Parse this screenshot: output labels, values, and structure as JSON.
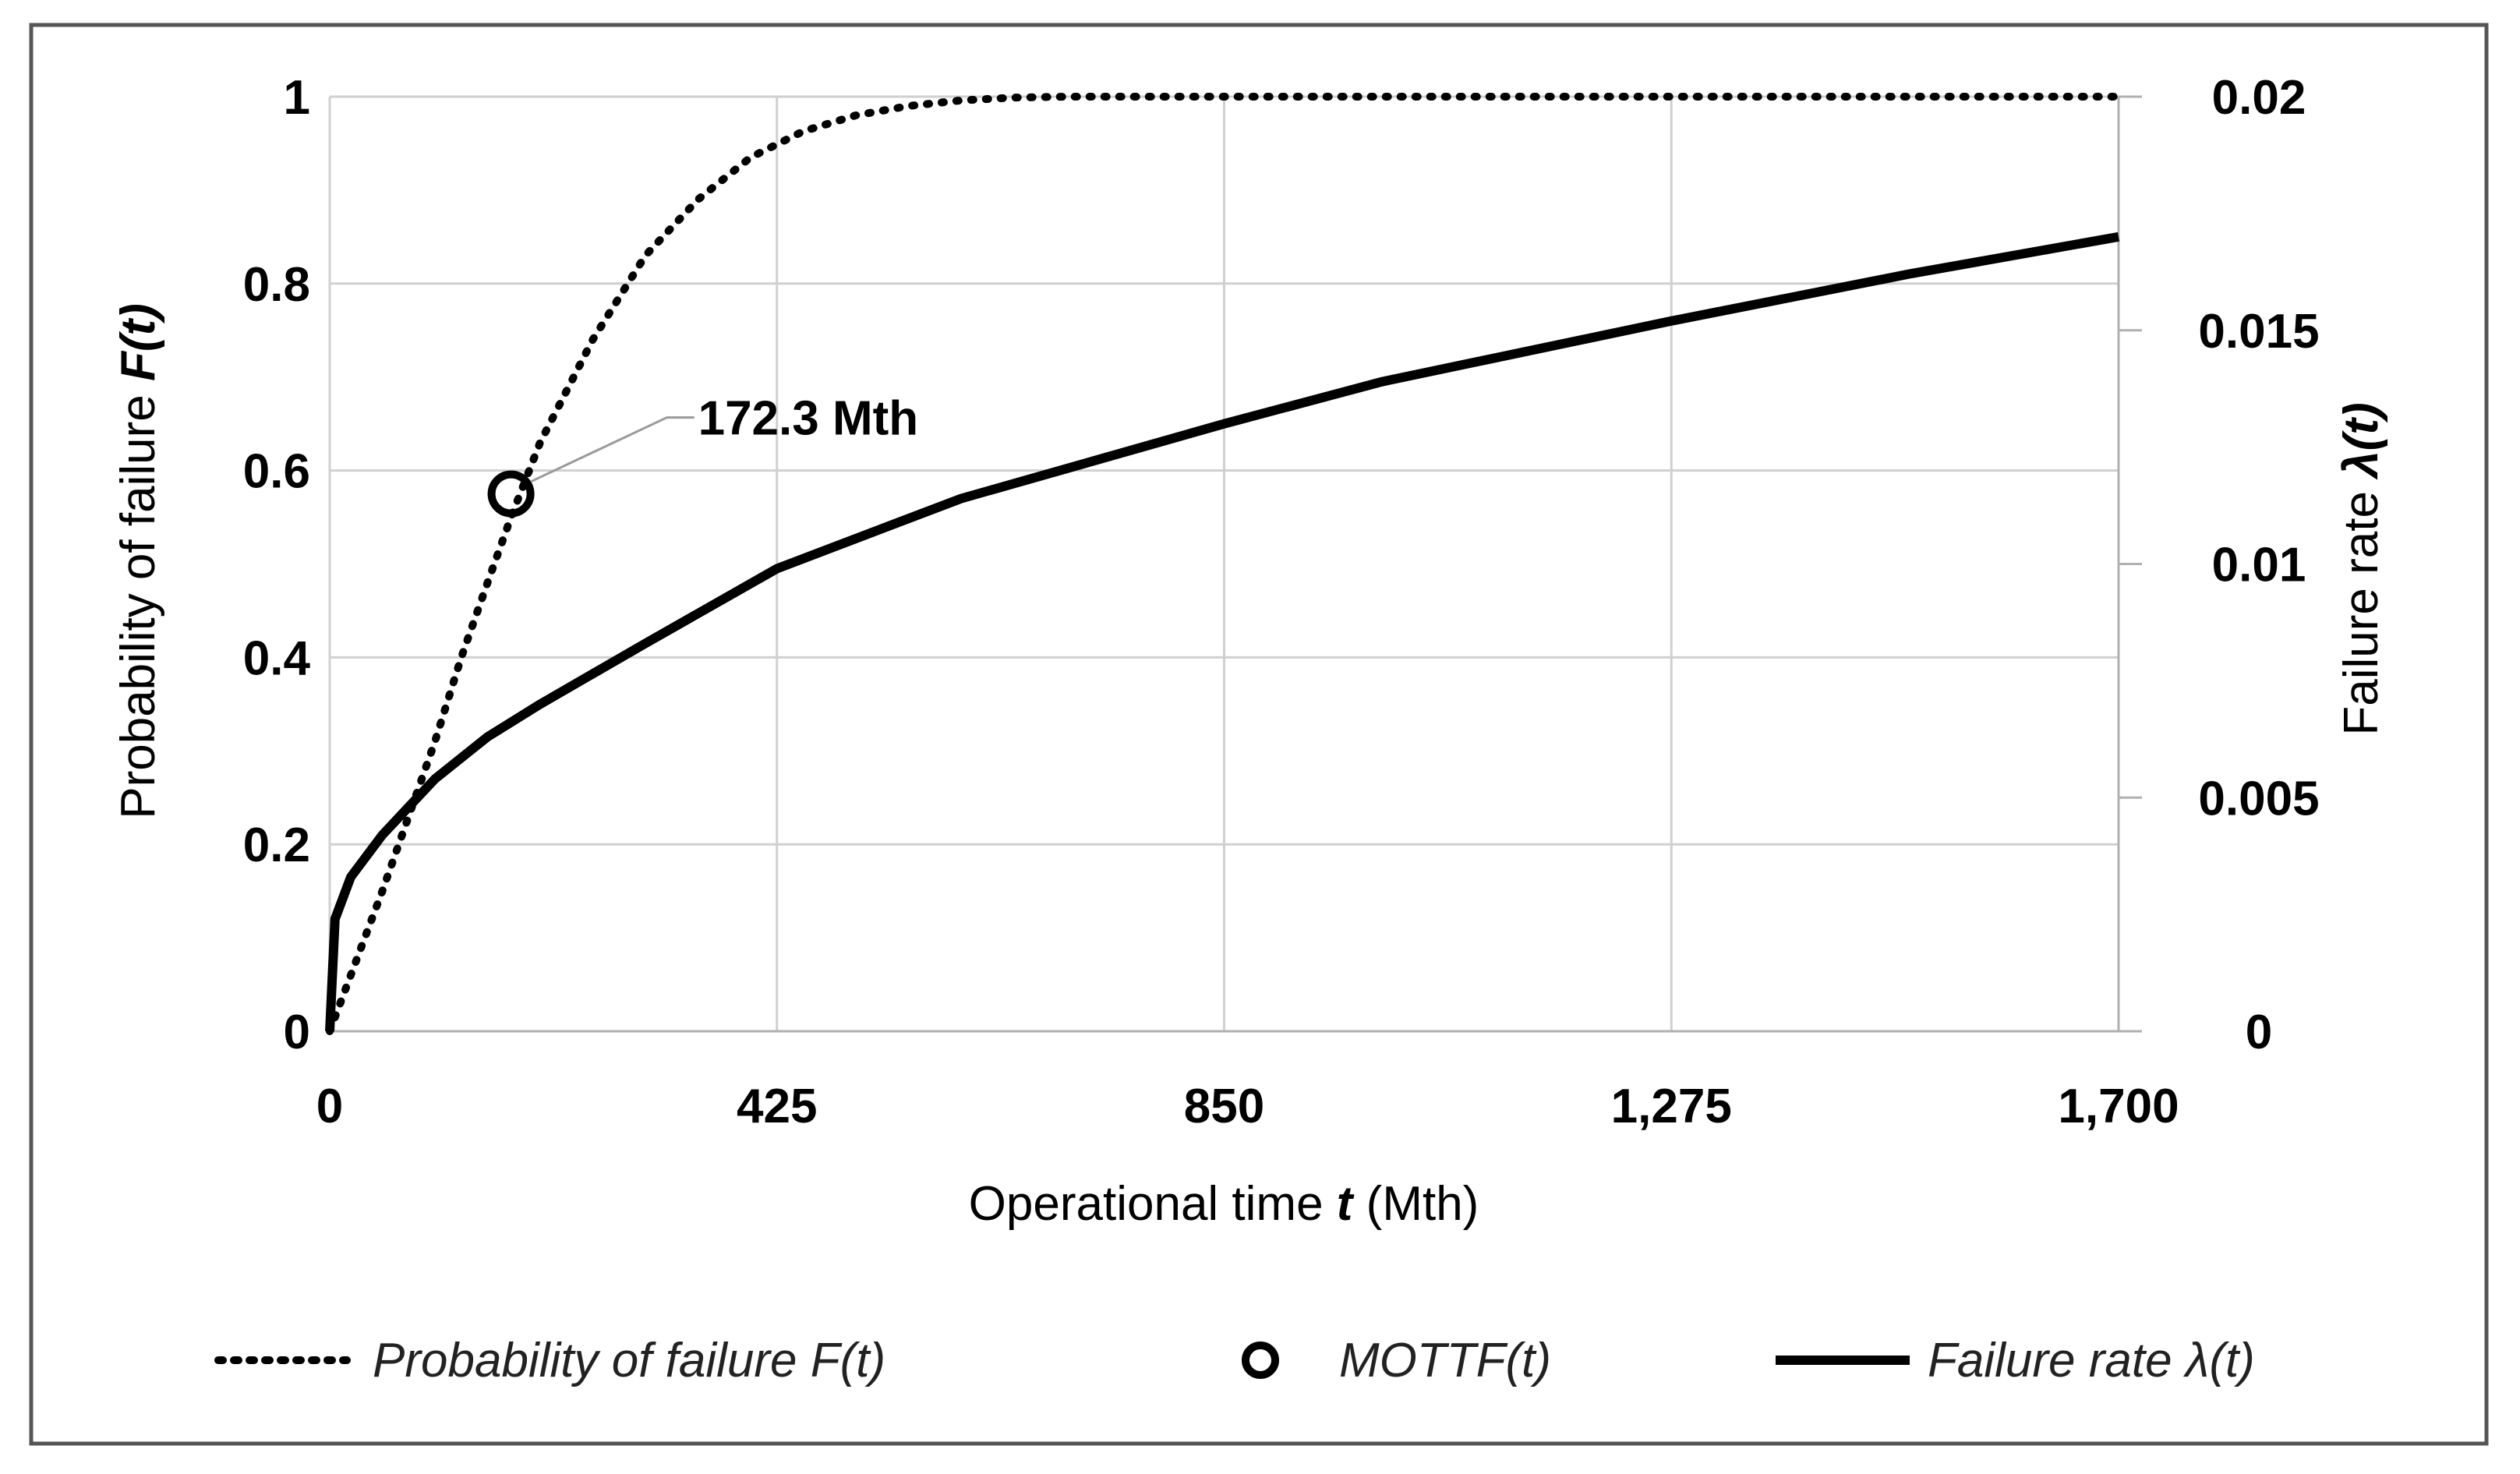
{
  "chart_data": {
    "type": "line",
    "x": {
      "label_prefix": "Operational time ",
      "label_var": "t",
      "label_suffix": " (Mth)",
      "min": 0,
      "max": 1700,
      "ticks": [
        0,
        425,
        850,
        1275,
        1700
      ],
      "tick_labels": [
        "0",
        "425",
        "850",
        "1,275",
        "1,700"
      ]
    },
    "y_left": {
      "label_prefix": "Probability of failure ",
      "label_var": "F(t)",
      "min": 0,
      "max": 1,
      "ticks": [
        0,
        0.2,
        0.4,
        0.6,
        0.8,
        1
      ],
      "tick_labels": [
        "0",
        "0.2",
        "0.4",
        "0.6",
        "0.8",
        "1"
      ]
    },
    "y_right": {
      "label_prefix": "Failure rate ",
      "label_var": "λ(t)",
      "min": 0,
      "max": 0.02,
      "ticks": [
        0,
        0.005,
        0.01,
        0.015,
        0.02
      ],
      "tick_labels": [
        "0",
        "0.005",
        "0.01",
        "0.015",
        "0.02"
      ]
    },
    "grid": true,
    "series": [
      {
        "name": "Probability of failure F(t)",
        "axis": "left",
        "style": "dotted",
        "points": [
          [
            0,
            0
          ],
          [
            20,
            0.06
          ],
          [
            50,
            0.15
          ],
          [
            75,
            0.23
          ],
          [
            100,
            0.31
          ],
          [
            125,
            0.4
          ],
          [
            150,
            0.48
          ],
          [
            172.3,
            0.55
          ],
          [
            200,
            0.63
          ],
          [
            250,
            0.74
          ],
          [
            300,
            0.83
          ],
          [
            350,
            0.89
          ],
          [
            400,
            0.935
          ],
          [
            450,
            0.963
          ],
          [
            500,
            0.98
          ],
          [
            550,
            0.99
          ],
          [
            600,
            0.996
          ],
          [
            650,
            0.999
          ],
          [
            700,
            1
          ],
          [
            1700,
            1
          ]
        ]
      },
      {
        "name": "Failure rate λ(t)",
        "axis": "right",
        "style": "solid",
        "points": [
          [
            0,
            0
          ],
          [
            5,
            0.0024
          ],
          [
            20,
            0.0033
          ],
          [
            50,
            0.0042
          ],
          [
            100,
            0.0054
          ],
          [
            150,
            0.0063
          ],
          [
            200,
            0.007
          ],
          [
            300,
            0.0083
          ],
          [
            425,
            0.0099
          ],
          [
            600,
            0.0114
          ],
          [
            850,
            0.013
          ],
          [
            1000,
            0.0139
          ],
          [
            1275,
            0.0152
          ],
          [
            1500,
            0.0162
          ],
          [
            1700,
            0.017
          ]
        ]
      }
    ],
    "marker": {
      "name": "MOTTF(t)",
      "x": 172.3,
      "y": 0.575,
      "label": "172.3 Mth"
    },
    "legend": {
      "position": "bottom",
      "items": [
        {
          "style": "dotted",
          "label": "Probability of failure F(t)"
        },
        {
          "style": "circle",
          "label": "MOTTF(t)"
        },
        {
          "style": "solid",
          "label": "Failure rate λ(t)"
        }
      ]
    }
  }
}
